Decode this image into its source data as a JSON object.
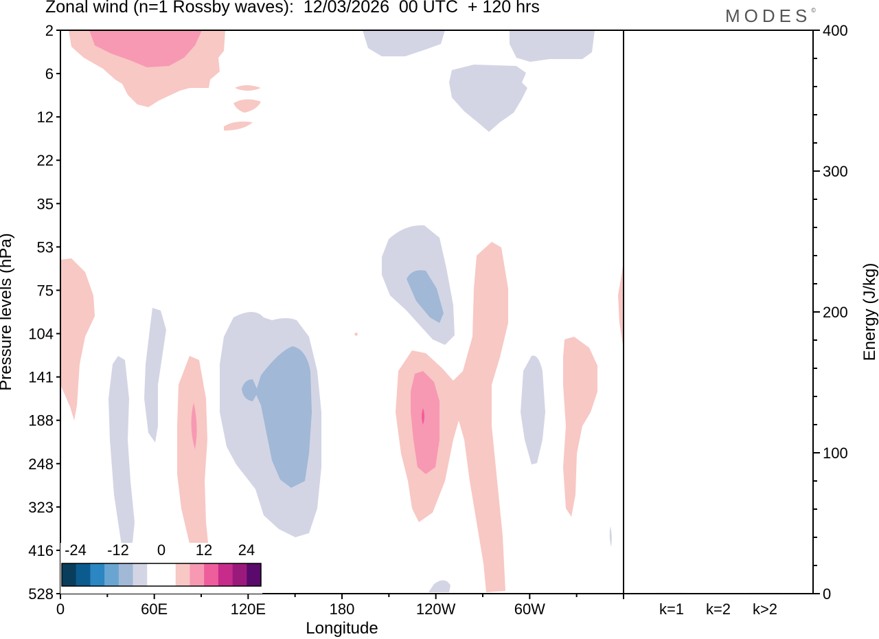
{
  "header": {
    "title": "Zonal wind (n=1 Rossby waves):  12/03/2026  00 UTC  + 120 hrs",
    "logo": "MODES",
    "logo_mark": "©"
  },
  "chart_data": [
    {
      "type": "contour",
      "xlabel": "Longitude",
      "ylabel": "Pressure levels (hPa)",
      "x_ticks": [
        "0",
        "60E",
        "120E",
        "180",
        "120W",
        "60W"
      ],
      "x_tick_degrees": [
        0,
        60,
        120,
        180,
        240,
        300
      ],
      "xlim": [
        0,
        360
      ],
      "y_ticks": [
        "2",
        "6",
        "12",
        "22",
        "35",
        "53",
        "75",
        "104",
        "141",
        "188",
        "248",
        "323",
        "416",
        "528"
      ],
      "colors": {
        "neg_light": "#d3d5e5",
        "neg_mid": "#a1b8d6",
        "pos_light": "#f8c8c4",
        "pos_mid": "#f799b3",
        "pos_strong": "#ef5e9c"
      },
      "colorbar": {
        "labels": [
          "-24",
          "-12",
          "0",
          "12",
          "24"
        ],
        "colors": [
          "#0a3d5c",
          "#0b5b8f",
          "#2b86c2",
          "#6aa5d1",
          "#a1b8d6",
          "#d3d5e5",
          "#ffffff",
          "#ffffff",
          "#f8c8c4",
          "#f799b3",
          "#ef5e9c",
          "#c72c8b",
          "#9a1a7c",
          "#5a0a6b"
        ]
      }
    },
    {
      "type": "bar",
      "categories": [
        "k=1",
        "k=2",
        "k>2"
      ],
      "values": [
        0.5,
        0.4,
        0.5
      ],
      "ylabel": "Energy (J/kg)",
      "ylim": [
        0,
        400
      ],
      "y_ticks": [
        "0",
        "100",
        "200",
        "300",
        "400"
      ]
    }
  ]
}
